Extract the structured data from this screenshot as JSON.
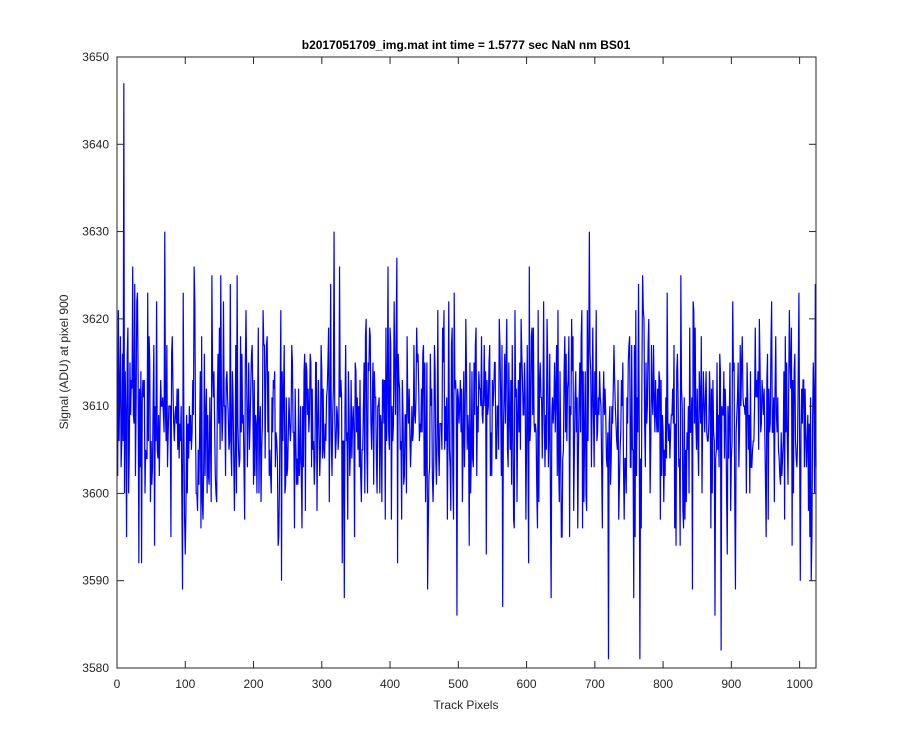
{
  "chart_data": {
    "type": "line",
    "title": "b2017051709_img.mat int time = 1.5777 sec  NaN nm BS01",
    "xlabel": "Track Pixels",
    "ylabel": "Signal (ADU) at pixel 900",
    "xlim": [
      0,
      1024
    ],
    "ylim": [
      3580,
      3650
    ],
    "xticks": [
      0,
      100,
      200,
      300,
      400,
      500,
      600,
      700,
      800,
      900,
      1000
    ],
    "yticks": [
      3580,
      3590,
      3600,
      3610,
      3620,
      3630,
      3640,
      3650
    ],
    "grid": false,
    "series": [
      {
        "color": "#0000ff",
        "n_points": 1024,
        "x_start": 1,
        "x_step": 1,
        "mean": 3609.2,
        "std": 6.5,
        "key_points": [
          {
            "x": 1,
            "y": 3602
          },
          {
            "x": 5,
            "y": 3618
          },
          {
            "x": 10,
            "y": 3647
          },
          {
            "x": 12,
            "y": 3614
          },
          {
            "x": 26,
            "y": 3624
          },
          {
            "x": 32,
            "y": 3592
          },
          {
            "x": 36,
            "y": 3592
          },
          {
            "x": 55,
            "y": 3594
          },
          {
            "x": 70,
            "y": 3630
          },
          {
            "x": 96,
            "y": 3589
          },
          {
            "x": 113,
            "y": 3626
          },
          {
            "x": 166,
            "y": 3624
          },
          {
            "x": 241,
            "y": 3590
          },
          {
            "x": 318,
            "y": 3630
          },
          {
            "x": 330,
            "y": 3592
          },
          {
            "x": 333,
            "y": 3588
          },
          {
            "x": 410,
            "y": 3627
          },
          {
            "x": 455,
            "y": 3589
          },
          {
            "x": 498,
            "y": 3586
          },
          {
            "x": 565,
            "y": 3587
          },
          {
            "x": 636,
            "y": 3588
          },
          {
            "x": 692,
            "y": 3630
          },
          {
            "x": 720,
            "y": 3581
          },
          {
            "x": 757,
            "y": 3588
          },
          {
            "x": 766,
            "y": 3581
          },
          {
            "x": 843,
            "y": 3589
          },
          {
            "x": 876,
            "y": 3586
          },
          {
            "x": 885,
            "y": 3582
          },
          {
            "x": 906,
            "y": 3589
          },
          {
            "x": 1001,
            "y": 3590
          },
          {
            "x": 1017,
            "y": 3590
          },
          {
            "x": 1024,
            "y": 3603
          }
        ]
      }
    ]
  }
}
